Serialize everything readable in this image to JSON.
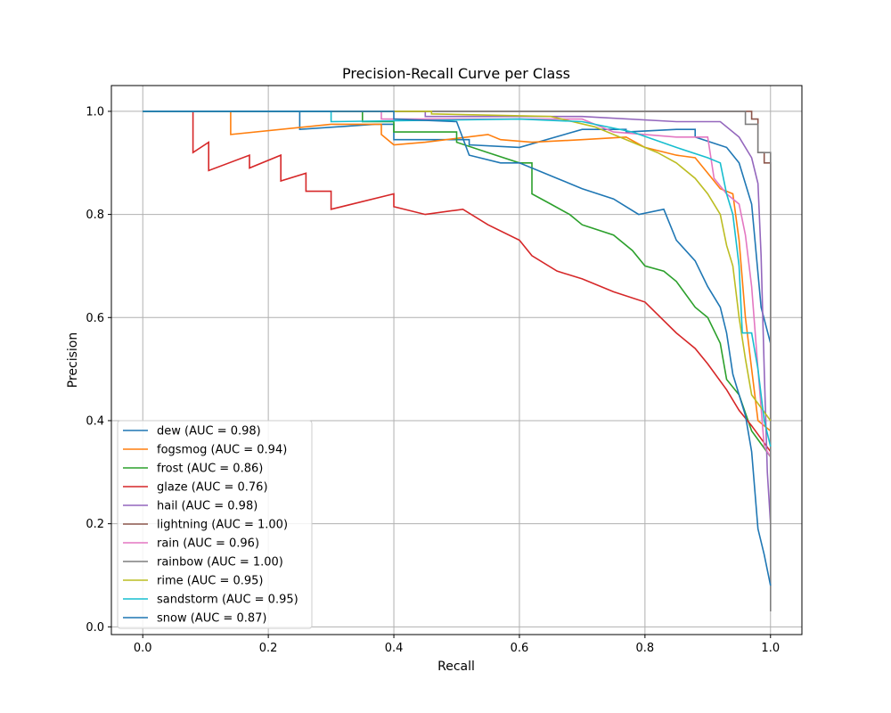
{
  "chart_data": {
    "type": "line",
    "title": "Precision-Recall Curve per Class",
    "xlabel": "Recall",
    "ylabel": "Precision",
    "xlim": [
      -0.05,
      1.05
    ],
    "ylim": [
      -0.015,
      1.05
    ],
    "xticks": [
      0.0,
      0.2,
      0.4,
      0.6,
      0.8,
      1.0
    ],
    "xtick_labels": [
      "0.0",
      "0.2",
      "0.4",
      "0.6",
      "0.8",
      "1.0"
    ],
    "yticks": [
      0.0,
      0.2,
      0.4,
      0.6,
      0.8,
      1.0
    ],
    "ytick_labels": [
      "0.0",
      "0.2",
      "0.4",
      "0.6",
      "0.8",
      "1.0"
    ],
    "grid": true,
    "legend_position": "lower-left",
    "series": [
      {
        "name": "dew (AUC = 0.98)",
        "color": "#1f77b4",
        "points": [
          [
            0,
            1
          ],
          [
            0.25,
            1
          ],
          [
            0.25,
            0.965
          ],
          [
            0.37,
            0.975
          ],
          [
            0.4,
            0.975
          ],
          [
            0.4,
            0.945
          ],
          [
            0.52,
            0.945
          ],
          [
            0.52,
            0.935
          ],
          [
            0.6,
            0.93
          ],
          [
            0.7,
            0.965
          ],
          [
            0.77,
            0.965
          ],
          [
            0.77,
            0.96
          ],
          [
            0.85,
            0.965
          ],
          [
            0.88,
            0.965
          ],
          [
            0.88,
            0.95
          ],
          [
            0.93,
            0.93
          ],
          [
            0.95,
            0.9
          ],
          [
            0.97,
            0.82
          ],
          [
            0.985,
            0.62
          ],
          [
            1.0,
            0.55
          ]
        ]
      },
      {
        "name": "fogsmog (AUC = 0.94)",
        "color": "#ff7f0e",
        "points": [
          [
            0,
            1
          ],
          [
            0.14,
            1
          ],
          [
            0.14,
            0.955
          ],
          [
            0.3,
            0.975
          ],
          [
            0.38,
            0.975
          ],
          [
            0.38,
            0.955
          ],
          [
            0.4,
            0.935
          ],
          [
            0.45,
            0.94
          ],
          [
            0.55,
            0.955
          ],
          [
            0.57,
            0.945
          ],
          [
            0.62,
            0.94
          ],
          [
            0.7,
            0.945
          ],
          [
            0.77,
            0.95
          ],
          [
            0.8,
            0.93
          ],
          [
            0.85,
            0.915
          ],
          [
            0.88,
            0.91
          ],
          [
            0.9,
            0.88
          ],
          [
            0.92,
            0.85
          ],
          [
            0.94,
            0.84
          ],
          [
            0.95,
            0.75
          ],
          [
            0.96,
            0.6
          ],
          [
            0.97,
            0.5
          ],
          [
            0.98,
            0.4
          ],
          [
            1.0,
            0.38
          ]
        ]
      },
      {
        "name": "frost (AUC = 0.86)",
        "color": "#2ca02c",
        "points": [
          [
            0,
            1
          ],
          [
            0.35,
            1
          ],
          [
            0.35,
            0.98
          ],
          [
            0.4,
            0.98
          ],
          [
            0.4,
            0.96
          ],
          [
            0.5,
            0.96
          ],
          [
            0.5,
            0.94
          ],
          [
            0.55,
            0.92
          ],
          [
            0.6,
            0.9
          ],
          [
            0.62,
            0.9
          ],
          [
            0.62,
            0.84
          ],
          [
            0.65,
            0.82
          ],
          [
            0.68,
            0.8
          ],
          [
            0.7,
            0.78
          ],
          [
            0.75,
            0.76
          ],
          [
            0.78,
            0.73
          ],
          [
            0.8,
            0.7
          ],
          [
            0.83,
            0.69
          ],
          [
            0.85,
            0.67
          ],
          [
            0.88,
            0.62
          ],
          [
            0.9,
            0.6
          ],
          [
            0.92,
            0.55
          ],
          [
            0.93,
            0.48
          ],
          [
            0.95,
            0.45
          ],
          [
            0.97,
            0.38
          ],
          [
            1.0,
            0.33
          ]
        ]
      },
      {
        "name": "glaze (AUC = 0.76)",
        "color": "#d62728",
        "points": [
          [
            0,
            1
          ],
          [
            0.08,
            1
          ],
          [
            0.08,
            0.92
          ],
          [
            0.105,
            0.94
          ],
          [
            0.105,
            0.885
          ],
          [
            0.17,
            0.915
          ],
          [
            0.17,
            0.89
          ],
          [
            0.22,
            0.915
          ],
          [
            0.22,
            0.865
          ],
          [
            0.26,
            0.88
          ],
          [
            0.26,
            0.845
          ],
          [
            0.3,
            0.845
          ],
          [
            0.3,
            0.81
          ],
          [
            0.4,
            0.84
          ],
          [
            0.4,
            0.815
          ],
          [
            0.45,
            0.8
          ],
          [
            0.51,
            0.81
          ],
          [
            0.55,
            0.78
          ],
          [
            0.6,
            0.75
          ],
          [
            0.62,
            0.72
          ],
          [
            0.66,
            0.69
          ],
          [
            0.7,
            0.675
          ],
          [
            0.75,
            0.65
          ],
          [
            0.8,
            0.63
          ],
          [
            0.85,
            0.57
          ],
          [
            0.88,
            0.54
          ],
          [
            0.9,
            0.51
          ],
          [
            0.93,
            0.46
          ],
          [
            0.95,
            0.42
          ],
          [
            0.97,
            0.39
          ],
          [
            1.0,
            0.34
          ]
        ]
      },
      {
        "name": "hail (AUC = 0.98)",
        "color": "#9467bd",
        "points": [
          [
            0,
            1
          ],
          [
            0.45,
            1
          ],
          [
            0.45,
            0.99
          ],
          [
            0.7,
            0.99
          ],
          [
            0.85,
            0.98
          ],
          [
            0.92,
            0.98
          ],
          [
            0.95,
            0.95
          ],
          [
            0.97,
            0.91
          ],
          [
            0.98,
            0.86
          ],
          [
            0.985,
            0.72
          ],
          [
            0.99,
            0.5
          ],
          [
            0.995,
            0.3
          ],
          [
            1.0,
            0.2
          ]
        ]
      },
      {
        "name": "lightning (AUC = 1.00)",
        "color": "#8c564b",
        "points": [
          [
            0,
            1
          ],
          [
            0.97,
            1
          ],
          [
            0.97,
            0.985
          ],
          [
            0.98,
            0.985
          ],
          [
            0.98,
            0.92
          ],
          [
            0.99,
            0.92
          ],
          [
            0.99,
            0.9
          ],
          [
            1.0,
            0.9
          ],
          [
            1.0,
            0.4
          ]
        ]
      },
      {
        "name": "rain (AUC = 0.96)",
        "color": "#e377c2",
        "points": [
          [
            0,
            1
          ],
          [
            0.38,
            1
          ],
          [
            0.38,
            0.985
          ],
          [
            0.7,
            0.985
          ],
          [
            0.75,
            0.96
          ],
          [
            0.85,
            0.95
          ],
          [
            0.9,
            0.95
          ],
          [
            0.91,
            0.87
          ],
          [
            0.93,
            0.84
          ],
          [
            0.95,
            0.82
          ],
          [
            0.96,
            0.76
          ],
          [
            0.97,
            0.66
          ],
          [
            0.98,
            0.5
          ],
          [
            0.99,
            0.35
          ],
          [
            1.0,
            0.33
          ]
        ]
      },
      {
        "name": "rainbow (AUC = 1.00)",
        "color": "#7f7f7f",
        "points": [
          [
            0,
            1
          ],
          [
            0.96,
            1
          ],
          [
            0.96,
            0.975
          ],
          [
            0.98,
            0.975
          ],
          [
            0.98,
            0.92
          ],
          [
            1.0,
            0.92
          ],
          [
            1.0,
            0.03
          ]
        ]
      },
      {
        "name": "rime (AUC = 0.95)",
        "color": "#bcbd22",
        "points": [
          [
            0,
            1
          ],
          [
            0.46,
            1
          ],
          [
            0.46,
            0.995
          ],
          [
            0.65,
            0.99
          ],
          [
            0.72,
            0.97
          ],
          [
            0.78,
            0.94
          ],
          [
            0.82,
            0.92
          ],
          [
            0.85,
            0.9
          ],
          [
            0.88,
            0.87
          ],
          [
            0.9,
            0.84
          ],
          [
            0.92,
            0.8
          ],
          [
            0.93,
            0.74
          ],
          [
            0.94,
            0.7
          ],
          [
            0.95,
            0.6
          ],
          [
            0.96,
            0.52
          ],
          [
            0.97,
            0.45
          ],
          [
            1.0,
            0.4
          ]
        ]
      },
      {
        "name": "sandstorm (AUC = 0.95)",
        "color": "#17becf",
        "points": [
          [
            0,
            1
          ],
          [
            0.3,
            1
          ],
          [
            0.3,
            0.98
          ],
          [
            0.6,
            0.985
          ],
          [
            0.7,
            0.98
          ],
          [
            0.78,
            0.96
          ],
          [
            0.85,
            0.93
          ],
          [
            0.9,
            0.91
          ],
          [
            0.92,
            0.9
          ],
          [
            0.93,
            0.84
          ],
          [
            0.94,
            0.8
          ],
          [
            0.95,
            0.7
          ],
          [
            0.955,
            0.57
          ],
          [
            0.97,
            0.57
          ],
          [
            0.98,
            0.5
          ],
          [
            0.99,
            0.4
          ],
          [
            1.0,
            0.35
          ]
        ]
      },
      {
        "name": "snow (AUC = 0.87)",
        "color": "#1f77b4",
        "points": [
          [
            0,
            1
          ],
          [
            0.4,
            1
          ],
          [
            0.4,
            0.985
          ],
          [
            0.5,
            0.98
          ],
          [
            0.52,
            0.915
          ],
          [
            0.57,
            0.9
          ],
          [
            0.6,
            0.9
          ],
          [
            0.62,
            0.89
          ],
          [
            0.66,
            0.87
          ],
          [
            0.7,
            0.85
          ],
          [
            0.75,
            0.83
          ],
          [
            0.79,
            0.8
          ],
          [
            0.83,
            0.81
          ],
          [
            0.85,
            0.75
          ],
          [
            0.88,
            0.71
          ],
          [
            0.9,
            0.66
          ],
          [
            0.92,
            0.62
          ],
          [
            0.93,
            0.57
          ],
          [
            0.94,
            0.49
          ],
          [
            0.95,
            0.45
          ],
          [
            0.96,
            0.41
          ],
          [
            0.97,
            0.34
          ],
          [
            0.98,
            0.19
          ],
          [
            0.99,
            0.14
          ],
          [
            1.0,
            0.08
          ]
        ]
      }
    ]
  }
}
